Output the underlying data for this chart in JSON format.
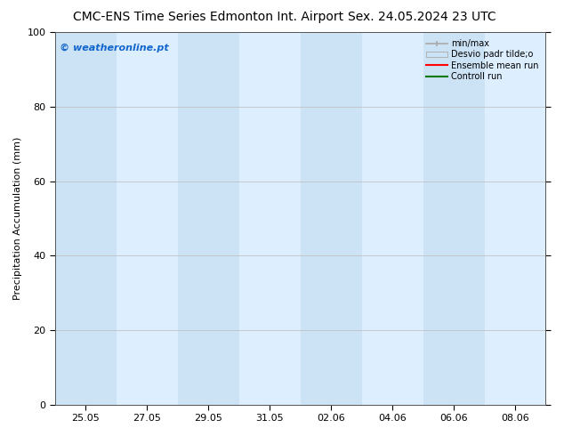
{
  "title_left": "CMC-ENS Time Series Edmonton Int. Airport",
  "title_right": "Sex. 24.05.2024 23 UTC",
  "ylabel": "Precipitation Accumulation (mm)",
  "xlabel": "",
  "ylim": [
    0,
    100
  ],
  "yticks": [
    0,
    20,
    40,
    60,
    80,
    100
  ],
  "xtick_labels": [
    "25.05",
    "27.05",
    "29.05",
    "31.05",
    "02.06",
    "04.06",
    "06.06",
    "08.06"
  ],
  "bg_color": "#ffffff",
  "plot_bg_color": "#ddeeff",
  "shaded_bands": [
    {
      "xmin": 0.0,
      "xmax": 0.135,
      "color": "#cce0f5"
    },
    {
      "xmin": 0.135,
      "xmax": 0.27,
      "color": "#ddeeff"
    },
    {
      "xmin": 0.27,
      "xmax": 0.405,
      "color": "#cce0f5"
    },
    {
      "xmin": 0.405,
      "xmax": 0.54,
      "color": "#ddeeff"
    },
    {
      "xmin": 0.54,
      "xmax": 0.675,
      "color": "#cce0f5"
    },
    {
      "xmin": 0.675,
      "xmax": 0.81,
      "color": "#ddeeff"
    },
    {
      "xmin": 0.81,
      "xmax": 0.945,
      "color": "#cce0f5"
    },
    {
      "xmin": 0.945,
      "xmax": 1.0,
      "color": "#ddeeff"
    }
  ],
  "watermark_text": "© weatheronline.pt",
  "watermark_color": "#1166cc",
  "legend_labels": [
    "min/max",
    "Desvio padr tilde;o",
    "Ensemble mean run",
    "Controll run"
  ],
  "legend_colors_line": [
    "#aaaaaa",
    "#bbccdd",
    "#ff0000",
    "#007700"
  ],
  "title_fontsize": 10,
  "axis_label_fontsize": 8,
  "tick_fontsize": 8,
  "watermark_fontsize": 8,
  "grid_color": "#bbbbbb",
  "spine_color": "#555555"
}
